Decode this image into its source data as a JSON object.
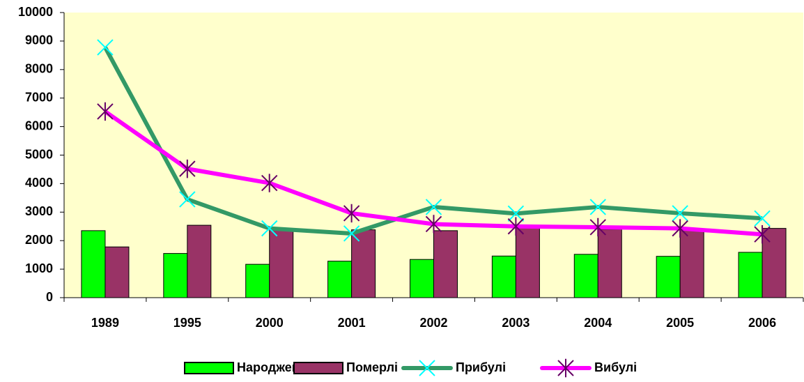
{
  "chart_data": {
    "type": "bar-line",
    "categories": [
      "1989",
      "1995",
      "2000",
      "2001",
      "2002",
      "2003",
      "2004",
      "2005",
      "2006"
    ],
    "series": [
      {
        "name": "Народжені",
        "type": "bar",
        "color": "#00ff00",
        "values": [
          2350,
          1550,
          1170,
          1280,
          1340,
          1460,
          1520,
          1450,
          1590
        ]
      },
      {
        "name": "Померлі",
        "type": "bar",
        "color": "#993366",
        "values": [
          1780,
          2540,
          2400,
          2380,
          2350,
          2450,
          2400,
          2380,
          2430
        ]
      },
      {
        "name": "Прибулі",
        "type": "line",
        "color": "#339966",
        "marker": "x",
        "marker_color": "#00ffff",
        "values": [
          8780,
          3450,
          2430,
          2250,
          3180,
          2950,
          3180,
          2960,
          2780
        ]
      },
      {
        "name": "Вибулі",
        "type": "line",
        "color": "#ff00ff",
        "marker": "star",
        "marker_color": "#660066",
        "values": [
          6530,
          4520,
          4020,
          2960,
          2580,
          2500,
          2470,
          2430,
          2220
        ]
      }
    ],
    "ylim": [
      0,
      10000
    ],
    "yticks": [
      0,
      1000,
      2000,
      3000,
      4000,
      5000,
      6000,
      7000,
      8000,
      9000,
      10000
    ],
    "plot_background": "#ffffcc",
    "legend": "bottom",
    "grid": false
  }
}
